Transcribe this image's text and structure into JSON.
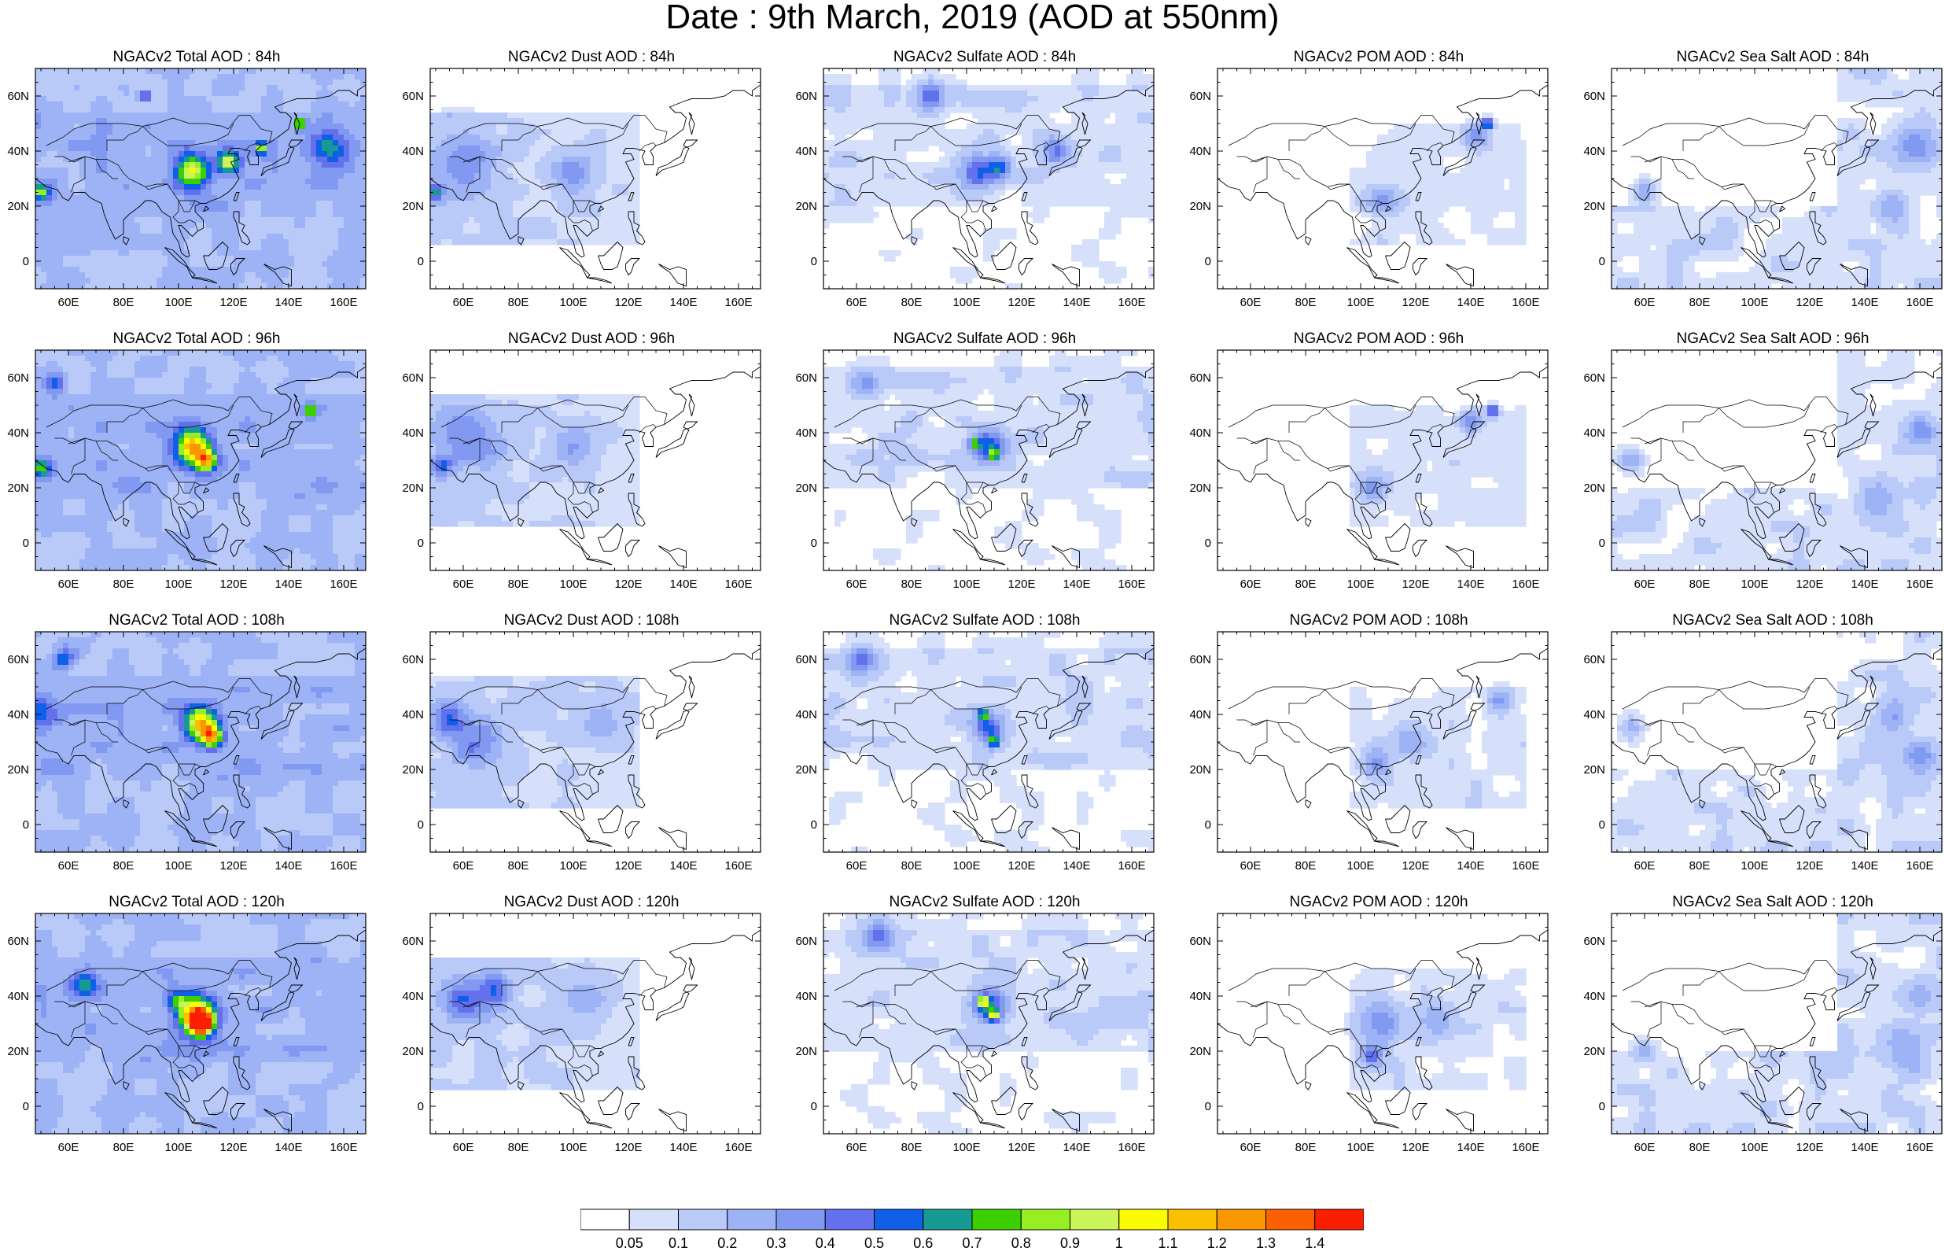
{
  "title": "Date : 9th March, 2019 (AOD at 550nm)",
  "panels": [
    [
      "NGACv2 Total AOD : 84h",
      "NGACv2 Dust AOD : 84h",
      "NGACv2 Sulfate AOD : 84h",
      "NGACv2 POM AOD : 84h",
      "NGACv2 Sea Salt AOD : 84h"
    ],
    [
      "NGACv2 Total AOD : 96h",
      "NGACv2 Dust AOD : 96h",
      "NGACv2 Sulfate AOD : 96h",
      "NGACv2 POM AOD : 96h",
      "NGACv2 Sea Salt AOD : 96h"
    ],
    [
      "NGACv2 Total AOD : 108h",
      "NGACv2 Dust AOD : 108h",
      "NGACv2 Sulfate AOD : 108h",
      "NGACv2 POM AOD : 108h",
      "NGACv2 Sea Salt AOD : 108h"
    ],
    [
      "NGACv2 Total AOD : 120h",
      "NGACv2 Dust AOD : 120h",
      "NGACv2 Sulfate AOD : 120h",
      "NGACv2 POM AOD : 120h",
      "NGACv2 Sea Salt  AOD : 120h"
    ]
  ],
  "axes": {
    "lat_labels": [
      "60N",
      "40N",
      "20N",
      "0"
    ],
    "lon_labels": [
      "60E",
      "80E",
      "100E",
      "120E",
      "140E",
      "160E"
    ],
    "lat_range": [
      -10,
      70
    ],
    "lon_range": [
      48,
      168
    ]
  },
  "colorbar": {
    "labels": [
      "0.05",
      "0.1",
      "0.2",
      "0.3",
      "0.4",
      "0.5",
      "0.6",
      "0.7",
      "0.8",
      "0.9",
      "1",
      "1.1",
      "1.2",
      "1.3",
      "1.4"
    ],
    "colors": [
      "#ffffff",
      "#d6e0fb",
      "#b9c9f8",
      "#9db3f5",
      "#8199f1",
      "#6471ec",
      "#0f5fe8",
      "#179a94",
      "#3cd000",
      "#96ef20",
      "#caf45a",
      "#fcfc00",
      "#fcc000",
      "#fc9600",
      "#fc6000",
      "#fc1e00"
    ]
  },
  "hotspots": {
    "Total": [
      [
        [
          88,
          60,
          2,
          0.45
        ],
        [
          105,
          33,
          6,
          0.8
        ],
        [
          118,
          36,
          4,
          0.75
        ],
        [
          130,
          41,
          2,
          0.75
        ],
        [
          144,
          50,
          2,
          0.8
        ],
        [
          50,
          25,
          3,
          0.6
        ],
        [
          155,
          40,
          8,
          0.35
        ]
      ],
      [
        [
          105,
          35,
          6,
          0.9
        ],
        [
          110,
          30,
          4,
          0.85
        ],
        [
          148,
          48,
          2,
          0.8
        ],
        [
          50,
          27,
          3,
          0.55
        ],
        [
          55,
          58,
          4,
          0.35
        ]
      ],
      [
        [
          108,
          37,
          6,
          0.9
        ],
        [
          112,
          32,
          4,
          0.85
        ],
        [
          50,
          40,
          6,
          0.35
        ],
        [
          58,
          60,
          4,
          0.35
        ]
      ],
      [
        [
          107,
          33,
          7,
          1.0
        ],
        [
          108,
          30,
          4,
          1.3
        ],
        [
          65,
          44,
          5,
          0.4
        ],
        [
          100,
          38,
          4,
          0.4
        ]
      ]
    ],
    "Dust": [
      [
        [
          50,
          25,
          3,
          0.5
        ],
        [
          60,
          35,
          12,
          0.3
        ],
        [
          100,
          32,
          8,
          0.25
        ]
      ],
      [
        [
          52,
          28,
          4,
          0.35
        ],
        [
          62,
          38,
          12,
          0.3
        ],
        [
          100,
          35,
          8,
          0.22
        ]
      ],
      [
        [
          55,
          38,
          6,
          0.35
        ],
        [
          65,
          30,
          10,
          0.28
        ],
        [
          110,
          38,
          8,
          0.2
        ]
      ],
      [
        [
          60,
          38,
          8,
          0.35
        ],
        [
          72,
          42,
          6,
          0.4
        ],
        [
          105,
          38,
          8,
          0.2
        ]
      ]
    ],
    "Sulfate": [
      [
        [
          87,
          60,
          5,
          0.45
        ],
        [
          104,
          32,
          6,
          0.4
        ],
        [
          112,
          34,
          4,
          0.45
        ],
        [
          132,
          40,
          5,
          0.35
        ]
      ],
      [
        [
          108,
          35,
          6,
          0.5
        ],
        [
          103,
          36,
          2,
          0.55
        ],
        [
          110,
          32,
          2,
          0.6
        ],
        [
          63,
          58,
          5,
          0.3
        ]
      ],
      [
        [
          108,
          35,
          6,
          0.45
        ],
        [
          106,
          40,
          2,
          0.65
        ],
        [
          110,
          30,
          2,
          0.6
        ],
        [
          62,
          60,
          5,
          0.4
        ]
      ],
      [
        [
          108,
          36,
          6,
          0.5
        ],
        [
          106,
          38,
          2,
          0.75
        ],
        [
          110,
          33,
          2,
          0.8
        ],
        [
          68,
          62,
          6,
          0.35
        ]
      ]
    ],
    "POM": [
      [
        [
          146,
          50,
          2,
          0.7
        ],
        [
          142,
          46,
          4,
          0.35
        ],
        [
          108,
          22,
          5,
          0.3
        ]
      ],
      [
        [
          148,
          48,
          2,
          0.65
        ],
        [
          140,
          44,
          4,
          0.3
        ],
        [
          105,
          20,
          5,
          0.3
        ]
      ],
      [
        [
          106,
          22,
          5,
          0.3
        ],
        [
          118,
          30,
          6,
          0.22
        ],
        [
          150,
          45,
          4,
          0.25
        ]
      ],
      [
        [
          108,
          30,
          8,
          0.3
        ],
        [
          104,
          18,
          4,
          0.35
        ],
        [
          128,
          32,
          6,
          0.22
        ]
      ]
    ],
    "Sea Salt": [
      [
        [
          158,
          42,
          8,
          0.3
        ],
        [
          150,
          20,
          6,
          0.25
        ],
        [
          60,
          25,
          4,
          0.25
        ]
      ],
      [
        [
          160,
          40,
          6,
          0.3
        ],
        [
          145,
          15,
          8,
          0.22
        ],
        [
          55,
          30,
          4,
          0.25
        ]
      ],
      [
        [
          160,
          25,
          6,
          0.25
        ],
        [
          150,
          40,
          6,
          0.22
        ],
        [
          55,
          35,
          4,
          0.22
        ]
      ],
      [
        [
          155,
          20,
          8,
          0.25
        ],
        [
          160,
          40,
          6,
          0.22
        ],
        [
          60,
          20,
          4,
          0.22
        ]
      ]
    ]
  }
}
